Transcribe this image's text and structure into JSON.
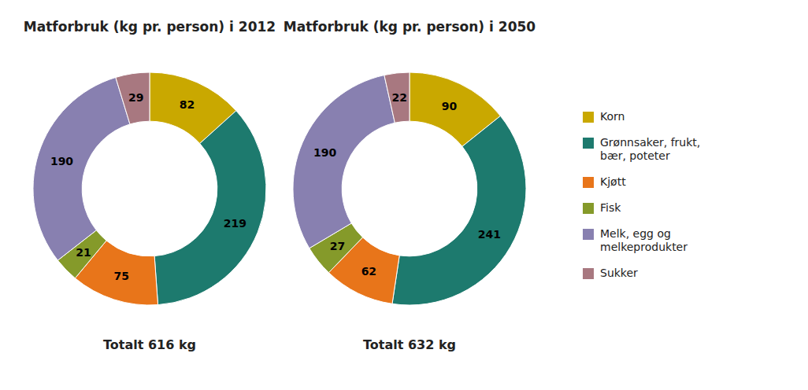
{
  "chart_data": [
    {
      "type": "pie",
      "title": "Matforbruk (kg pr. person) i 2012",
      "categories": [
        "Korn",
        "Grønnsaker, frukt,\nbær, poteter",
        "Kjøtt",
        "Fisk",
        "Melk, egg og\nmelkeprodukter",
        "Sukker"
      ],
      "values": [
        82,
        219,
        75,
        21,
        190,
        29
      ],
      "colors": [
        "#C9A800",
        "#1D7A6E",
        "#E8751A",
        "#859A2A",
        "#8880B0",
        "#A87880"
      ],
      "data_labels": true,
      "annotations": [
        "Totalt 616 kg"
      ],
      "legend": "right"
    },
    {
      "type": "pie",
      "title": "Matforbruk (kg pr. person) i 2050",
      "categories": [
        "Korn",
        "Grønnsaker, frukt,\nbær, poteter",
        "Kjøtt",
        "Fisk",
        "Melk, egg og\nmelkeprodukter",
        "Sukker"
      ],
      "values": [
        90,
        241,
        62,
        27,
        190,
        22
      ],
      "colors": [
        "#C9A800",
        "#1D7A6E",
        "#E8751A",
        "#859A2A",
        "#8880B0",
        "#A87880"
      ],
      "data_labels": true,
      "annotations": [
        "Totalt 632 kg"
      ]
    }
  ]
}
